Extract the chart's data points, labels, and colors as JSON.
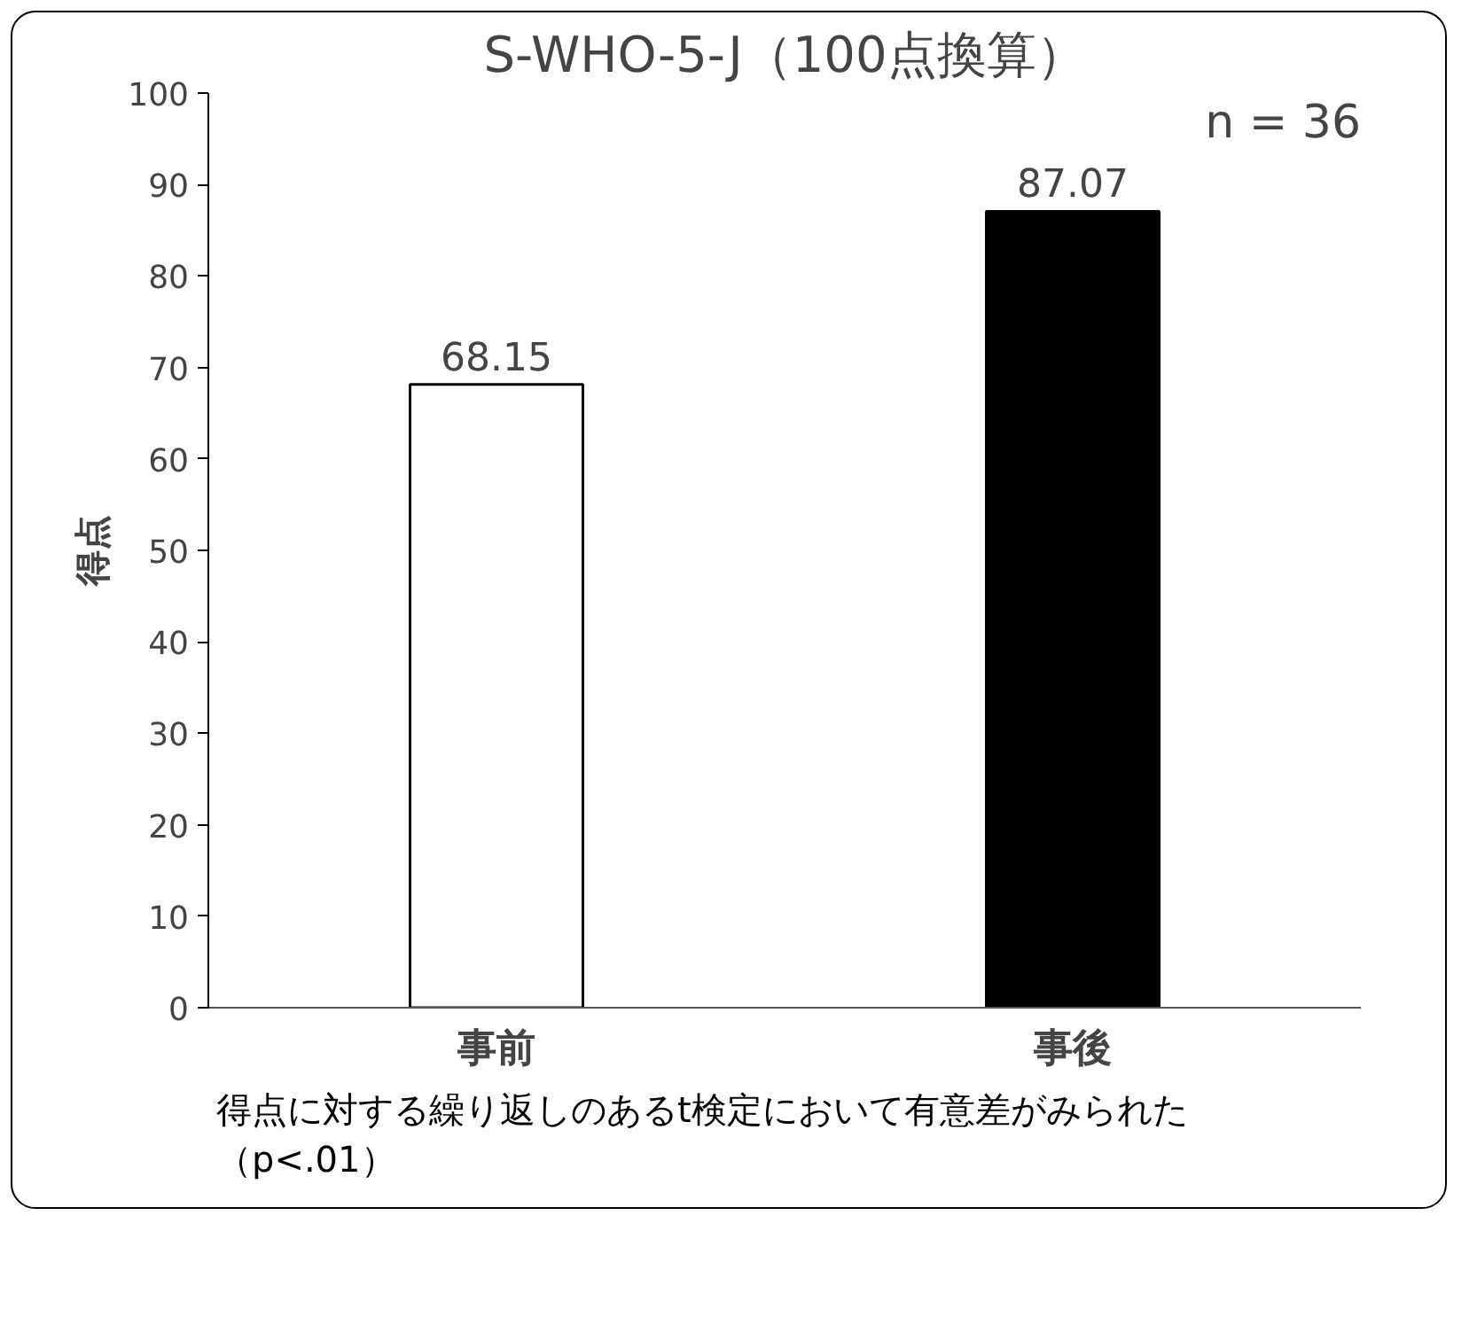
{
  "chart_data": {
    "type": "bar",
    "title": "S-WHO-5-J（100点換算）",
    "ylabel": "得点",
    "categories": [
      "事前",
      "事後"
    ],
    "values": [
      68.15,
      87.07
    ],
    "colors": [
      "#ffffff",
      "#000000"
    ],
    "data_labels": true,
    "ylim": [
      0,
      100
    ],
    "yticks": [
      0,
      10,
      20,
      30,
      40,
      50,
      60,
      70,
      80,
      90,
      100
    ],
    "grid": false,
    "annotations": [
      "n = 36",
      "得点に対する繰り返しのあるt検定において有意差がみられた（p<.01）"
    ]
  }
}
